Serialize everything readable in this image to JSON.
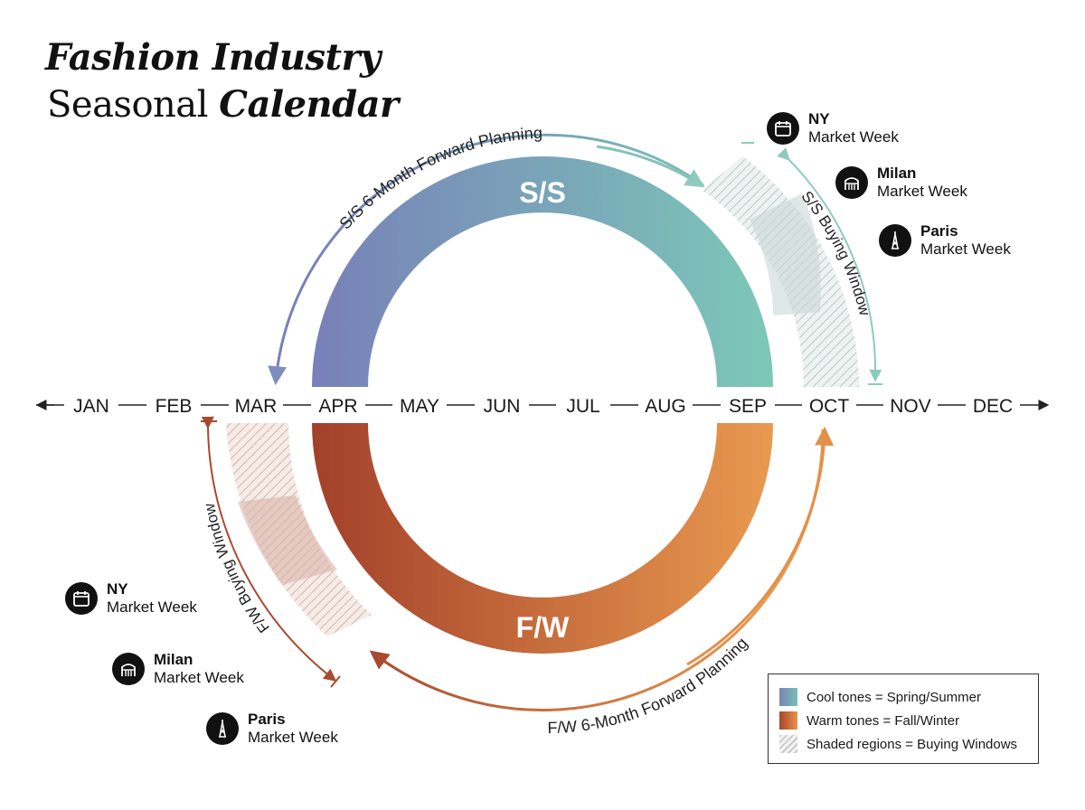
{
  "title": {
    "line1": "Fashion Industry",
    "line2_plain": "Seasonal ",
    "line2_emph": "Calendar"
  },
  "months": [
    "JAN",
    "FEB",
    "MAR",
    "APR",
    "MAY",
    "JUN",
    "JUL",
    "AUG",
    "SEP",
    "OCT",
    "NOV",
    "DEC"
  ],
  "seasons": {
    "ss": {
      "label": "S/S",
      "planning": "S/S 6-Month Forward Planning",
      "buying": "S/S Buying Window",
      "color_start": "#7880b8",
      "color_end": "#7cc8b8"
    },
    "fw": {
      "label": "F/W",
      "planning": "F/W 6-Month Forward Planning",
      "buying": "F/W Buying Window",
      "color_start": "#a3402a",
      "color_end": "#e99a50"
    }
  },
  "markets_top": [
    {
      "city": "NY",
      "label": "Market Week",
      "icon": "calendar-icon"
    },
    {
      "city": "Milan",
      "label": "Market Week",
      "icon": "gallery-icon"
    },
    {
      "city": "Paris",
      "label": "Market Week",
      "icon": "eiffel-tower-icon"
    }
  ],
  "markets_bottom": [
    {
      "city": "NY",
      "label": "Market Week",
      "icon": "calendar-icon"
    },
    {
      "city": "Milan",
      "label": "Market Week",
      "icon": "gallery-icon"
    },
    {
      "city": "Paris",
      "label": "Market Week",
      "icon": "eiffel-tower-icon"
    }
  ],
  "legend": {
    "cool": "Cool tones = Spring/Summer",
    "warm": "Warm tones = Fall/Winter",
    "shade": "Shaded regions = Buying Windows"
  }
}
